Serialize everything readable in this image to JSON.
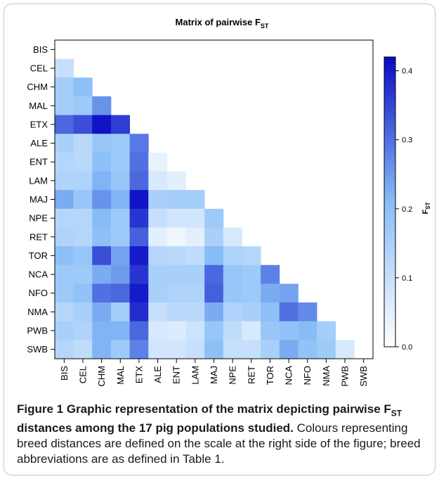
{
  "chart_data": {
    "type": "heatmap",
    "title": "Matrix of pairwise F",
    "title_sub": "ST",
    "rows": [
      "BIS",
      "CEL",
      "CHM",
      "MAL",
      "ETX",
      "ALE",
      "ENT",
      "LAM",
      "MAJ",
      "NPE",
      "RET",
      "TOR",
      "NCA",
      "NFO",
      "NMA",
      "PWB",
      "SWB"
    ],
    "columns": [
      "BIS",
      "CEL",
      "CHM",
      "MAL",
      "ETX",
      "ALE",
      "ENT",
      "LAM",
      "MAJ",
      "NPE",
      "RET",
      "TOR",
      "NCA",
      "NFO",
      "NMA",
      "PWB",
      "SWB"
    ],
    "matrix_lower": [
      [],
      [
        0.1
      ],
      [
        0.16,
        0.2
      ],
      [
        0.16,
        0.17,
        0.26
      ],
      [
        0.31,
        0.34,
        0.41,
        0.36
      ],
      [
        0.15,
        0.12,
        0.18,
        0.17,
        0.29
      ],
      [
        0.13,
        0.12,
        0.2,
        0.17,
        0.3,
        0.04
      ],
      [
        0.14,
        0.14,
        0.22,
        0.18,
        0.31,
        0.07,
        0.05
      ],
      [
        0.23,
        0.18,
        0.26,
        0.22,
        0.41,
        0.15,
        0.16,
        0.16
      ],
      [
        0.13,
        0.13,
        0.21,
        0.17,
        0.37,
        0.1,
        0.08,
        0.08,
        0.17
      ],
      [
        0.14,
        0.13,
        0.2,
        0.17,
        0.32,
        0.05,
        0.03,
        0.05,
        0.15,
        0.07
      ],
      [
        0.2,
        0.18,
        0.34,
        0.24,
        0.4,
        0.13,
        0.12,
        0.11,
        0.21,
        0.14,
        0.13
      ],
      [
        0.17,
        0.17,
        0.23,
        0.25,
        0.37,
        0.15,
        0.15,
        0.15,
        0.31,
        0.18,
        0.17,
        0.28
      ],
      [
        0.17,
        0.19,
        0.3,
        0.31,
        0.4,
        0.15,
        0.14,
        0.14,
        0.32,
        0.18,
        0.17,
        0.23,
        0.24
      ],
      [
        0.13,
        0.15,
        0.23,
        0.16,
        0.38,
        0.1,
        0.12,
        0.12,
        0.23,
        0.14,
        0.15,
        0.2,
        0.3,
        0.27
      ],
      [
        0.15,
        0.14,
        0.22,
        0.22,
        0.31,
        0.07,
        0.06,
        0.09,
        0.18,
        0.11,
        0.07,
        0.18,
        0.19,
        0.21,
        0.16
      ],
      [
        0.13,
        0.11,
        0.22,
        0.17,
        0.28,
        0.08,
        0.08,
        0.1,
        0.2,
        0.1,
        0.1,
        0.15,
        0.23,
        0.19,
        0.17,
        0.07
      ]
    ],
    "scale": {
      "min": 0.0,
      "max": 0.42,
      "ticks": [
        "0.0",
        "0.1",
        "0.2",
        "0.3",
        "0.4"
      ],
      "label": "F",
      "label_sub": "ST",
      "color_low": "#ffffff",
      "color_mid": "#87bdf7",
      "color_high": "#0a0ac4"
    }
  },
  "caption": {
    "figure_label": "Figure 1",
    "heading_a": " Graphic representation of the matrix depicting pairwise F",
    "heading_sub": "ST",
    "heading_b": " distances among the 17 pig populations studied.",
    "body": "Colours representing breed distances are defined on the scale at the right side of the figure; breed abbreviations are as defined in Table 1."
  }
}
